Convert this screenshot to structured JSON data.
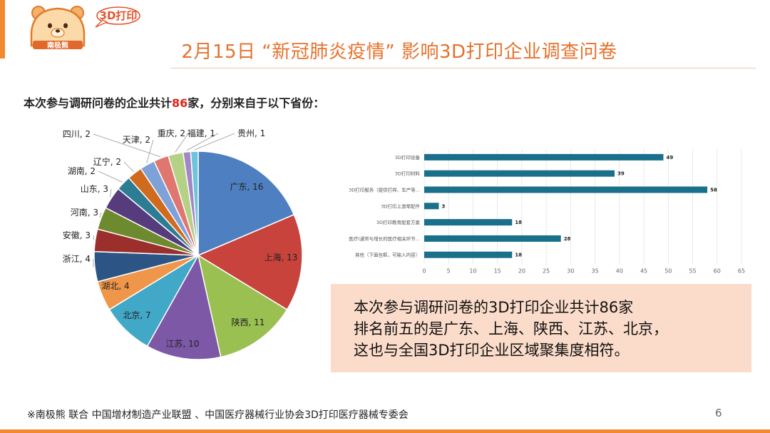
{
  "logo": {
    "brand": "南极熊",
    "bubble": "3D打印"
  },
  "title": "2月15日 “新冠肺炎疫情” 影响3D打印企业调查问卷",
  "intro": {
    "before": "本次参与调研问卷的企业共计",
    "count": "86",
    "after": "家，分别来自于以下省份："
  },
  "colors": {
    "accent": "#f0892f",
    "title": "#e5722d",
    "highlight": "#d9251c",
    "bar": "#1a6f8a",
    "summary_bg": "#fbdcca"
  },
  "chart_data": [
    {
      "type": "pie",
      "slices": [
        {
          "label": "广东",
          "value": 16,
          "color": "#4e7fc0"
        },
        {
          "label": "上海",
          "value": 13,
          "color": "#c9433d"
        },
        {
          "label": "陕西",
          "value": 11,
          "color": "#9ac052"
        },
        {
          "label": "江苏",
          "value": 10,
          "color": "#7d58a6"
        },
        {
          "label": "北京",
          "value": 7,
          "color": "#42a8c8"
        },
        {
          "label": "湖北",
          "value": 4,
          "color": "#f0964a"
        },
        {
          "label": "浙江",
          "value": 4,
          "color": "#2c5585"
        },
        {
          "label": "安徽",
          "value": 3,
          "color": "#9a2f2b"
        },
        {
          "label": "河南",
          "value": 3,
          "color": "#6d8a2e"
        },
        {
          "label": "山东",
          "value": 3,
          "color": "#563b7d"
        },
        {
          "label": "湖南",
          "value": 2,
          "color": "#2c7d94"
        },
        {
          "label": "辽宁",
          "value": 2,
          "color": "#d06a1f"
        },
        {
          "label": "天津",
          "value": 2,
          "color": "#7ea2d8"
        },
        {
          "label": "四川",
          "value": 2,
          "color": "#e07670"
        },
        {
          "label": "重庆",
          "value": 2,
          "color": "#b5d185"
        },
        {
          "label": "福建",
          "value": 1,
          "color": "#a387c4"
        },
        {
          "label": "贵州",
          "value": 1,
          "color": "#6fc3dc"
        }
      ]
    },
    {
      "type": "bar",
      "orientation": "horizontal",
      "categories": [
        "3D打印设备",
        "3D打印材料",
        "3D打印服务（提供打样、生产等...",
        "3D打印上游零配件",
        "3D打印教育配套方案",
        "医疗(通常与增长的医疗相关环节...",
        "其他（下面包框，可输入内容）"
      ],
      "values": [
        49,
        39,
        58,
        3,
        18,
        28,
        18
      ],
      "xlim": [
        0,
        65
      ],
      "xticks": [
        "0",
        "5",
        "10",
        "15",
        "20",
        "25",
        "30",
        "35",
        "40",
        "45",
        "50",
        "55",
        "60",
        "65"
      ]
    }
  ],
  "summary": [
    "本次参与调研问卷的3D打印企业共计86家",
    "排名前五的是广东、上海、陕西、江苏、北京，",
    "这也与全国3D打印企业区域聚集度相符。"
  ],
  "footer": "※南极熊 联合 中国增材制造产业联盟 、中国医疗器械行业协会3D打印医疗器械专委会",
  "page_number": "6"
}
